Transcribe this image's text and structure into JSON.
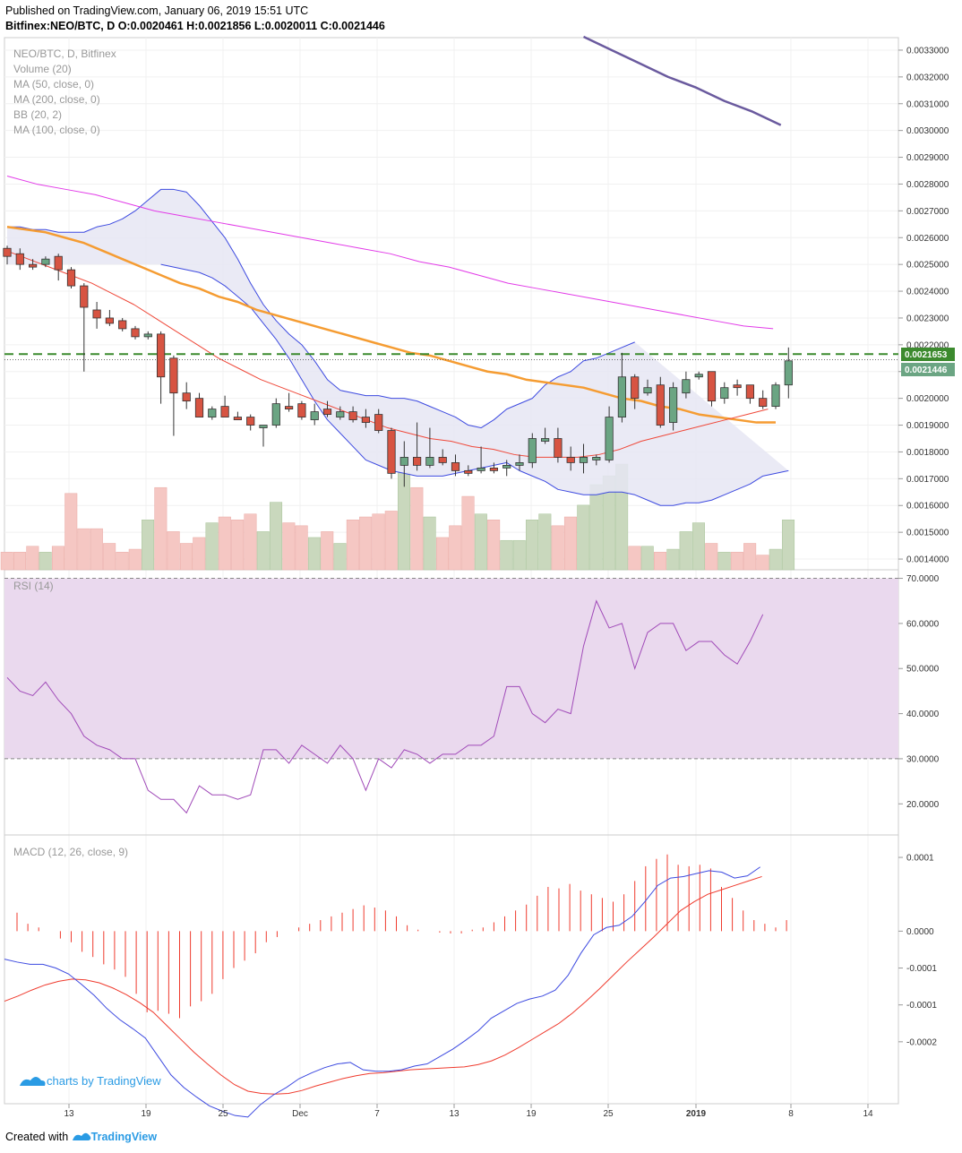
{
  "header": {
    "published": "Published on TradingView.com, January 06, 2019 15:51 UTC",
    "quote": "Bitfinex:NEO/BTC, D  O:0.0020461 H:0.0021856 L:0.0020011 C:0.0021446"
  },
  "legend": {
    "symbol": "NEO/BTC, D, Bitfinex",
    "volume": "Volume (20)",
    "ma50": "MA (50, close, 0)",
    "ma200": "MA (200, close, 0)",
    "bb": "BB (20, 2)",
    "ma100": "MA (100, close, 0)",
    "rsi": "RSI (14)",
    "macd": "MACD (12, 26, close, 9)"
  },
  "price_labels": {
    "alert": "0.0021653",
    "last": "0.0021446"
  },
  "watermark": "charts by TradingView",
  "footer": {
    "created": "Created with",
    "brand": "TradingView"
  },
  "colors": {
    "up": "#6ba583",
    "down": "#d75442",
    "bb": "#3d4ae0",
    "bb_fill": "#e6e6f3",
    "ma50": "#f59c32",
    "ma100": "#ef4839",
    "ma200": "#e23ae8",
    "ma_top": "#6a5a9e",
    "rsi": "#a04ab8",
    "rsi_band": "#ead9ee",
    "macd": "#3d4ae0",
    "signal": "#ef3b2e",
    "alert": "#3c8a2e"
  },
  "chart_data": [
    {
      "type": "candlestick",
      "title": "NEO/BTC, D, Bitfinex",
      "ylim": [
        0.00136,
        0.00334
      ],
      "x_ticks": [
        "13",
        "19",
        "25",
        "Dec",
        "7",
        "13",
        "19",
        "25",
        "2019",
        "8",
        "14"
      ],
      "y_ticks": [
        "0.0014000",
        "0.0015000",
        "0.0016000",
        "0.0017000",
        "0.0018000",
        "0.0019000",
        "0.0020000",
        "0.0021000",
        "0.0022000",
        "0.0023000",
        "0.0024000",
        "0.0025000",
        "0.0026000",
        "0.0027000",
        "0.0028000",
        "0.0029000",
        "0.0030000",
        "0.0031000",
        "0.0032000",
        "0.0033000"
      ],
      "candles": [
        {
          "o": 0.00256,
          "h": 0.00257,
          "l": 0.0025,
          "c": 0.00253
        },
        {
          "o": 0.00254,
          "h": 0.00256,
          "l": 0.00248,
          "c": 0.0025
        },
        {
          "o": 0.0025,
          "h": 0.00252,
          "l": 0.00248,
          "c": 0.00249
        },
        {
          "o": 0.0025,
          "h": 0.00253,
          "l": 0.00249,
          "c": 0.00252
        },
        {
          "o": 0.00253,
          "h": 0.00254,
          "l": 0.00244,
          "c": 0.00248
        },
        {
          "o": 0.00248,
          "h": 0.00249,
          "l": 0.00241,
          "c": 0.00242
        },
        {
          "o": 0.00242,
          "h": 0.00243,
          "l": 0.0021,
          "c": 0.00234
        },
        {
          "o": 0.00233,
          "h": 0.00236,
          "l": 0.00226,
          "c": 0.0023
        },
        {
          "o": 0.0023,
          "h": 0.00233,
          "l": 0.00227,
          "c": 0.00228
        },
        {
          "o": 0.00229,
          "h": 0.0023,
          "l": 0.00225,
          "c": 0.00226
        },
        {
          "o": 0.00226,
          "h": 0.00227,
          "l": 0.00222,
          "c": 0.00223
        },
        {
          "o": 0.00223,
          "h": 0.00225,
          "l": 0.00222,
          "c": 0.00224
        },
        {
          "o": 0.00224,
          "h": 0.00225,
          "l": 0.00198,
          "c": 0.00208
        },
        {
          "o": 0.00215,
          "h": 0.00216,
          "l": 0.00186,
          "c": 0.00202
        },
        {
          "o": 0.00202,
          "h": 0.00206,
          "l": 0.00196,
          "c": 0.00199
        },
        {
          "o": 0.002,
          "h": 0.00202,
          "l": 0.00193,
          "c": 0.00193
        },
        {
          "o": 0.00193,
          "h": 0.00197,
          "l": 0.00192,
          "c": 0.00196
        },
        {
          "o": 0.00197,
          "h": 0.00201,
          "l": 0.00193,
          "c": 0.00193
        },
        {
          "o": 0.00193,
          "h": 0.00195,
          "l": 0.00192,
          "c": 0.00192
        },
        {
          "o": 0.00193,
          "h": 0.00194,
          "l": 0.00188,
          "c": 0.0019
        },
        {
          "o": 0.00189,
          "h": 0.0019,
          "l": 0.00182,
          "c": 0.0019
        },
        {
          "o": 0.0019,
          "h": 0.002,
          "l": 0.00189,
          "c": 0.00198
        },
        {
          "o": 0.00197,
          "h": 0.00202,
          "l": 0.00195,
          "c": 0.00196
        },
        {
          "o": 0.00198,
          "h": 0.00199,
          "l": 0.00192,
          "c": 0.00193
        },
        {
          "o": 0.00192,
          "h": 0.00198,
          "l": 0.0019,
          "c": 0.00195
        },
        {
          "o": 0.00196,
          "h": 0.00199,
          "l": 0.00193,
          "c": 0.00194
        },
        {
          "o": 0.00193,
          "h": 0.00197,
          "l": 0.00192,
          "c": 0.00195
        },
        {
          "o": 0.00195,
          "h": 0.00197,
          "l": 0.00191,
          "c": 0.00192
        },
        {
          "o": 0.00193,
          "h": 0.00196,
          "l": 0.00189,
          "c": 0.00191
        },
        {
          "o": 0.00194,
          "h": 0.00196,
          "l": 0.00187,
          "c": 0.00188
        },
        {
          "o": 0.00188,
          "h": 0.00189,
          "l": 0.0017,
          "c": 0.00172
        },
        {
          "o": 0.00175,
          "h": 0.00184,
          "l": 0.00167,
          "c": 0.00178
        },
        {
          "o": 0.00178,
          "h": 0.00191,
          "l": 0.00173,
          "c": 0.00175
        },
        {
          "o": 0.00175,
          "h": 0.00189,
          "l": 0.00174,
          "c": 0.00178
        },
        {
          "o": 0.00178,
          "h": 0.00181,
          "l": 0.00175,
          "c": 0.00176
        },
        {
          "o": 0.00176,
          "h": 0.00179,
          "l": 0.00171,
          "c": 0.00173
        },
        {
          "o": 0.00173,
          "h": 0.00175,
          "l": 0.00171,
          "c": 0.00172
        },
        {
          "o": 0.00173,
          "h": 0.00182,
          "l": 0.00172,
          "c": 0.00174
        },
        {
          "o": 0.00174,
          "h": 0.00176,
          "l": 0.00172,
          "c": 0.00173
        },
        {
          "o": 0.00174,
          "h": 0.00177,
          "l": 0.00171,
          "c": 0.00175
        },
        {
          "o": 0.00175,
          "h": 0.00179,
          "l": 0.00173,
          "c": 0.00176
        },
        {
          "o": 0.00176,
          "h": 0.00187,
          "l": 0.00174,
          "c": 0.00185
        },
        {
          "o": 0.00184,
          "h": 0.00189,
          "l": 0.00183,
          "c": 0.00185
        },
        {
          "o": 0.00185,
          "h": 0.00189,
          "l": 0.00176,
          "c": 0.00178
        },
        {
          "o": 0.00178,
          "h": 0.00182,
          "l": 0.00173,
          "c": 0.00176
        },
        {
          "o": 0.00176,
          "h": 0.00183,
          "l": 0.00172,
          "c": 0.00178
        },
        {
          "o": 0.00177,
          "h": 0.00179,
          "l": 0.00175,
          "c": 0.00178
        },
        {
          "o": 0.00177,
          "h": 0.00197,
          "l": 0.00176,
          "c": 0.00193
        },
        {
          "o": 0.00193,
          "h": 0.00217,
          "l": 0.00191,
          "c": 0.00208
        },
        {
          "o": 0.00208,
          "h": 0.00209,
          "l": 0.00196,
          "c": 0.002
        },
        {
          "o": 0.00202,
          "h": 0.00207,
          "l": 0.00201,
          "c": 0.00204
        },
        {
          "o": 0.00205,
          "h": 0.00208,
          "l": 0.00189,
          "c": 0.0019
        },
        {
          "o": 0.00191,
          "h": 0.00206,
          "l": 0.00188,
          "c": 0.00204
        },
        {
          "o": 0.00202,
          "h": 0.0021,
          "l": 0.002,
          "c": 0.00207
        },
        {
          "o": 0.00208,
          "h": 0.0021,
          "l": 0.00207,
          "c": 0.00209
        },
        {
          "o": 0.0021,
          "h": 0.0021,
          "l": 0.00197,
          "c": 0.00199
        },
        {
          "o": 0.002,
          "h": 0.00206,
          "l": 0.00198,
          "c": 0.00204
        },
        {
          "o": 0.00205,
          "h": 0.00207,
          "l": 0.00201,
          "c": 0.00204
        },
        {
          "o": 0.00205,
          "h": 0.00205,
          "l": 0.00198,
          "c": 0.002
        },
        {
          "o": 0.002,
          "h": 0.00203,
          "l": 0.00196,
          "c": 0.00197
        },
        {
          "o": 0.00197,
          "h": 0.00206,
          "l": 0.00196,
          "c": 0.00205
        },
        {
          "o": 0.00205,
          "h": 0.00219,
          "l": 0.002,
          "c": 0.00214
        }
      ],
      "volume_ylim": [
        0,
        1
      ],
      "volume": [
        0.06,
        0.06,
        0.08,
        0.06,
        0.08,
        0.26,
        0.14,
        0.14,
        0.09,
        0.06,
        0.07,
        0.17,
        0.28,
        0.13,
        0.09,
        0.11,
        0.16,
        0.18,
        0.17,
        0.19,
        0.13,
        0.23,
        0.16,
        0.15,
        0.11,
        0.13,
        0.09,
        0.17,
        0.18,
        0.19,
        0.2,
        0.33,
        0.28,
        0.18,
        0.11,
        0.15,
        0.25,
        0.19,
        0.17,
        0.1,
        0.1,
        0.17,
        0.19,
        0.15,
        0.18,
        0.22,
        0.29,
        0.32,
        0.36,
        0.08,
        0.08,
        0.06,
        0.07,
        0.13,
        0.16,
        0.09,
        0.06,
        0.06,
        0.09,
        0.05,
        0.07,
        0.17
      ],
      "bb_upper": [
        0.00264,
        0.00264,
        0.00263,
        0.00263,
        0.00262,
        0.00262,
        0.00262,
        0.00264,
        0.00265,
        0.00267,
        0.0027,
        0.00274,
        0.00278,
        0.00278,
        0.00277,
        0.00272,
        0.00266,
        0.0026,
        0.00252,
        0.00243,
        0.00235,
        0.00229,
        0.00224,
        0.0022,
        0.00214,
        0.00207,
        0.00203,
        0.00202,
        0.00201,
        0.00201,
        0.002,
        0.002,
        0.00199,
        0.00197,
        0.00195,
        0.00193,
        0.0019,
        0.00189,
        0.00192,
        0.00196,
        0.00198,
        0.002,
        0.00205,
        0.00208,
        0.0021,
        0.00214,
        0.00215,
        0.00217,
        0.00219,
        0.00221
      ],
      "bb_lower": [
        0.0025,
        0.00249,
        0.00248,
        0.00247,
        0.00245,
        0.00242,
        0.00238,
        0.00234,
        0.00228,
        0.00222,
        0.00215,
        0.00207,
        0.00199,
        0.00192,
        0.00187,
        0.00182,
        0.00177,
        0.00175,
        0.00173,
        0.00172,
        0.00171,
        0.00171,
        0.00171,
        0.00172,
        0.00173,
        0.00174,
        0.00175,
        0.00176,
        0.00173,
        0.00171,
        0.00169,
        0.00166,
        0.00165,
        0.00164,
        0.00164,
        0.00165,
        0.00165,
        0.00164,
        0.00162,
        0.0016,
        0.0016,
        0.00161,
        0.00161,
        0.00162,
        0.00164,
        0.00166,
        0.00168,
        0.00171,
        0.00172,
        0.00173
      ],
      "ma50": [
        0.00264,
        0.00263,
        0.00262,
        0.0026,
        0.00258,
        0.00255,
        0.00252,
        0.00249,
        0.00246,
        0.00243,
        0.00241,
        0.00238,
        0.00236,
        0.00233,
        0.00231,
        0.00229,
        0.00227,
        0.00225,
        0.00223,
        0.00221,
        0.00219,
        0.00217,
        0.00216,
        0.00214,
        0.00212,
        0.0021,
        0.00209,
        0.00207,
        0.00206,
        0.00205,
        0.00204,
        0.00202,
        0.002,
        0.00199,
        0.00197,
        0.00196,
        0.00194,
        0.00193,
        0.00192,
        0.00191,
        0.00191
      ],
      "ma100": [
        0.00255,
        0.00252,
        0.00249,
        0.00246,
        0.00243,
        0.00239,
        0.00235,
        0.0023,
        0.00225,
        0.0022,
        0.00215,
        0.00211,
        0.00207,
        0.00204,
        0.00201,
        0.00198,
        0.00195,
        0.00192,
        0.00189,
        0.00187,
        0.00185,
        0.00184,
        0.00182,
        0.00181,
        0.00179,
        0.00178,
        0.00178,
        0.00178,
        0.00179,
        0.00181,
        0.00184,
        0.00186,
        0.00188,
        0.0019,
        0.00192,
        0.00194,
        0.00196
      ],
      "ma200": [
        0.00283,
        0.0028,
        0.00278,
        0.00276,
        0.00273,
        0.0027,
        0.00268,
        0.00266,
        0.00264,
        0.00262,
        0.0026,
        0.00258,
        0.00256,
        0.00254,
        0.00251,
        0.00249,
        0.00246,
        0.00243,
        0.00241,
        0.00239,
        0.00237,
        0.00235,
        0.00233,
        0.00231,
        0.00229,
        0.00227,
        0.00226
      ],
      "ma_top": [
        0.00335,
        0.0033,
        0.00325,
        0.0032,
        0.00316,
        0.00311,
        0.00307,
        0.00302
      ],
      "alert_level": 0.0021653,
      "last_price": 0.0021446
    },
    {
      "type": "line",
      "title": "RSI (14)",
      "ylim": [
        13.5,
        71.5
      ],
      "y_ticks": [
        "20.0000",
        "30.0000",
        "40.0000",
        "50.0000",
        "60.0000",
        "70.0000"
      ],
      "bands": [
        30,
        70
      ],
      "values": [
        48,
        45,
        44,
        47,
        43,
        40,
        35,
        33,
        32,
        30,
        30,
        23,
        21,
        21,
        18,
        24,
        22,
        22,
        21,
        22,
        32,
        32,
        29,
        33,
        31,
        29,
        33,
        30,
        23,
        30,
        28,
        32,
        31,
        29,
        31,
        31,
        33,
        33,
        35,
        46,
        46,
        40,
        38,
        41,
        40,
        55,
        65,
        59,
        60,
        50,
        58,
        60,
        60,
        54,
        56,
        56,
        53,
        51,
        56,
        62
      ]
    },
    {
      "type": "line",
      "title": "MACD (12, 26, close, 9)",
      "ylim": [
        -0.000234,
        0.000128
      ],
      "y_ticks": [
        "0.0001",
        "0.0000",
        "-0.0001",
        "-0.0001",
        "-0.0002"
      ],
      "macd": [
        -3.8e-05,
        -4.2e-05,
        -4.5e-05,
        -4.5e-05,
        -5e-05,
        -5.8e-05,
        -7.2e-05,
        -8.7e-05,
        -0.000105,
        -0.00012,
        -0.000132,
        -0.000145,
        -0.00017,
        -0.000195,
        -0.000212,
        -0.000225,
        -0.000237,
        -0.000244,
        -0.00025,
        -0.000252,
        -0.000235,
        -0.000222,
        -0.000212,
        -0.0002,
        -0.000192,
        -0.000185,
        -0.00018,
        -0.000178,
        -0.000188,
        -0.00019,
        -0.00019,
        -0.000188,
        -0.000183,
        -0.00018,
        -0.00017,
        -0.00016,
        -0.000148,
        -0.000135,
        -0.000118,
        -0.000108,
        -9.8e-05,
        -9.2e-05,
        -8.8e-05,
        -8e-05,
        -6e-05,
        -3e-05,
        -5e-06,
        5e-06,
        8e-06,
        2e-05,
        4e-05,
        6.2e-05,
        7.2e-05,
        7.4e-05,
        7.8e-05,
        8.2e-05,
        8e-05,
        7.2e-05,
        7.5e-05,
        8.7e-05
      ],
      "signal": [
        -9.5e-05,
        -8.8e-05,
        -8e-05,
        -7.3e-05,
        -6.8e-05,
        -6.5e-05,
        -6.6e-05,
        -7e-05,
        -7.7e-05,
        -8.6e-05,
        -9.7e-05,
        -0.00011,
        -0.000128,
        -0.000146,
        -0.000164,
        -0.00018,
        -0.000195,
        -0.000208,
        -0.000217,
        -0.00022,
        -0.000221,
        -0.00022,
        -0.000216,
        -0.00021,
        -0.000205,
        -0.0002,
        -0.000196,
        -0.000193,
        -0.000192,
        -0.00019,
        -0.000188,
        -0.000187,
        -0.000186,
        -0.000185,
        -0.000184,
        -0.000181,
        -0.000176,
        -0.000168,
        -0.000158,
        -0.000147,
        -0.000136,
        -0.000125,
        -0.000111,
        -9.5e-05,
        -7.8e-05,
        -6e-05,
        -4.2e-05,
        -2.5e-05,
        -8e-06,
        1e-05,
        2.8e-05,
        4e-05,
        5e-05,
        5.6e-05,
        6.2e-05,
        6.8e-05,
        7.4e-05
      ],
      "histogram": [
        2.5e-05,
        1e-05,
        5e-06,
        0,
        -1e-05,
        -1.5e-05,
        -2.8e-05,
        -3.5e-05,
        -4.5e-05,
        -5.2e-05,
        -6.2e-05,
        -8.5e-05,
        -0.00011,
        -0.000108,
        -0.000112,
        -0.000118,
        -0.000102,
        -9.5e-05,
        -8.5e-05,
        -6.5e-05,
        -5e-05,
        -4e-05,
        -3e-05,
        -1.5e-05,
        -8e-06,
        0,
        5e-06,
        1e-05,
        1.5e-05,
        2e-05,
        2.5e-05,
        3e-05,
        3.5e-05,
        3.2e-05,
        2.8e-05,
        2e-05,
        8e-06,
        2e-06,
        0,
        -2e-06,
        -3e-06,
        -3e-06,
        2e-06,
        5e-06,
        1.2e-05,
        2e-05,
        2.8e-05,
        3.6e-05,
        4.8e-05,
        6e-05,
        5.8e-05,
        6.4e-05,
        5.5e-05,
        5e-05,
        4.5e-05,
        4e-05,
        5e-05,
        6.8e-05,
        8.8e-05,
        9.8e-05,
        0.000104,
        9e-05,
        8.8e-05,
        9e-05,
        8.5e-05,
        6e-05,
        4.5e-05,
        2.8e-05,
        1.5e-05,
        1e-05,
        5e-06,
        1.5e-05
      ]
    }
  ]
}
